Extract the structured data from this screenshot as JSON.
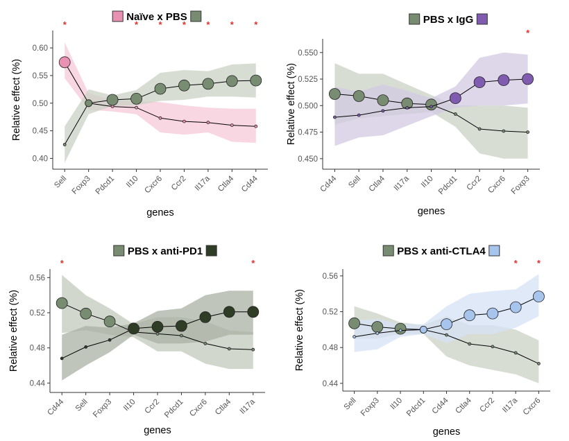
{
  "chart_data": [
    {
      "type": "line",
      "title": "Naïve x PBS",
      "xlabel": "genes",
      "ylabel": "Relative effect (%)",
      "categories": [
        "Sell",
        "Foxp3",
        "Pdcd1",
        "Il10",
        "Cxcr6",
        "Ccr2",
        "Il17a",
        "Ctla4",
        "Cd44"
      ],
      "yticks": [
        "0.40",
        "0.45",
        "0.50",
        "0.55",
        "0.60"
      ],
      "ylim": [
        0.388,
        0.624
      ],
      "significant": [
        true,
        false,
        false,
        true,
        true,
        true,
        true,
        true,
        true
      ],
      "series": [
        {
          "key": "s1",
          "color": "#e991b2",
          "band": "#f6c9d9",
          "values": [
            0.574,
            0.5,
            0.494,
            0.492,
            0.473,
            0.467,
            0.465,
            0.46,
            0.458
          ],
          "lower": [
            0.545,
            0.488,
            0.485,
            0.48,
            0.447,
            0.443,
            0.447,
            0.43,
            0.428
          ],
          "upper": [
            0.61,
            0.518,
            0.505,
            0.504,
            0.502,
            0.496,
            0.492,
            0.49,
            0.49
          ]
        },
        {
          "key": "s2",
          "color": "#788c72",
          "band": "#cbd2c6",
          "values": [
            0.425,
            0.5,
            0.506,
            0.508,
            0.526,
            0.532,
            0.535,
            0.54,
            0.541
          ],
          "lower": [
            0.392,
            0.48,
            0.495,
            0.496,
            0.504,
            0.506,
            0.512,
            0.512,
            0.51
          ],
          "upper": [
            0.458,
            0.525,
            0.514,
            0.524,
            0.555,
            0.56,
            0.558,
            0.57,
            0.572
          ]
        }
      ]
    },
    {
      "type": "line",
      "title": "PBS x IgG",
      "xlabel": "genes",
      "ylabel": "Relative effect (%)",
      "categories": [
        "Cd44",
        "Sell",
        "Ctla4",
        "Il17a",
        "Il10",
        "Pdcd1",
        "Ccr2",
        "Cxcr6",
        "Foxp3"
      ],
      "yticks": [
        "0.450",
        "0.475",
        "0.500",
        "0.525",
        "0.550"
      ],
      "ylim": [
        0.444,
        0.559
      ],
      "significant": [
        false,
        false,
        false,
        false,
        false,
        false,
        false,
        false,
        true
      ],
      "series": [
        {
          "key": "s1",
          "color": "#788c72",
          "band": "#cbd2c6",
          "values": [
            0.511,
            0.509,
            0.505,
            0.502,
            0.501,
            0.492,
            0.478,
            0.476,
            0.475
          ],
          "lower": [
            0.482,
            0.488,
            0.49,
            0.492,
            0.494,
            0.48,
            0.455,
            0.45,
            0.45
          ],
          "upper": [
            0.54,
            0.53,
            0.53,
            0.52,
            0.51,
            0.5,
            0.5,
            0.5,
            0.498
          ]
        },
        {
          "key": "s2",
          "color": "#7f5caf",
          "band": "#d3c9e3",
          "values": [
            0.489,
            0.491,
            0.495,
            0.498,
            0.499,
            0.507,
            0.522,
            0.524,
            0.525
          ],
          "lower": [
            0.462,
            0.47,
            0.472,
            0.481,
            0.49,
            0.498,
            0.5,
            0.5,
            0.502
          ],
          "upper": [
            0.518,
            0.513,
            0.52,
            0.514,
            0.507,
            0.518,
            0.545,
            0.55,
            0.548
          ]
        }
      ]
    },
    {
      "type": "line",
      "title": "PBS x anti-PD1",
      "xlabel": "genes",
      "ylabel": "Relative effect (%)",
      "categories": [
        "Cd44",
        "Sell",
        "Foxp3",
        "Il10",
        "Ccr2",
        "Pdcd1",
        "Cxcr6",
        "Ctla4",
        "Il17a"
      ],
      "yticks": [
        "0.44",
        "0.48",
        "0.52",
        "0.56"
      ],
      "ylim": [
        0.434,
        0.565
      ],
      "significant": [
        true,
        false,
        false,
        false,
        false,
        false,
        false,
        false,
        true
      ],
      "series": [
        {
          "key": "s1",
          "color": "#788c72",
          "band": "#c3c9bd",
          "values": [
            0.531,
            0.519,
            0.51,
            0.498,
            0.496,
            0.494,
            0.485,
            0.479,
            0.478
          ],
          "lower": [
            0.497,
            0.5,
            0.495,
            0.492,
            0.476,
            0.476,
            0.462,
            0.456,
            0.456
          ],
          "upper": [
            0.563,
            0.54,
            0.525,
            0.507,
            0.515,
            0.515,
            0.51,
            0.5,
            0.498
          ]
        },
        {
          "key": "s2",
          "color": "#2f3d26",
          "band": "#a9b1a3",
          "values": [
            0.468,
            0.481,
            0.489,
            0.502,
            0.504,
            0.505,
            0.515,
            0.521,
            0.521
          ],
          "lower": [
            0.443,
            0.46,
            0.475,
            0.495,
            0.485,
            0.485,
            0.487,
            0.495,
            0.495
          ],
          "upper": [
            0.495,
            0.505,
            0.503,
            0.508,
            0.522,
            0.525,
            0.54,
            0.545,
            0.545
          ]
        }
      ]
    },
    {
      "type": "line",
      "title": "PBS x anti-CTLA4",
      "xlabel": "genes",
      "ylabel": "Relative effect (%)",
      "categories": [
        "Sell",
        "Foxp3",
        "Il10",
        "Pdcd1",
        "Cd44",
        "Ctla4",
        "Ccr2",
        "Il17a",
        "Cxcr6"
      ],
      "yticks": [
        "0.44",
        "0.48",
        "0.52",
        "0.56"
      ],
      "ylim": [
        0.436,
        0.563
      ],
      "significant": [
        false,
        false,
        false,
        false,
        false,
        false,
        false,
        true,
        true
      ],
      "series": [
        {
          "key": "s1",
          "color": "#788c72",
          "band": "#cbd2c6",
          "values": [
            0.507,
            0.503,
            0.501,
            0.5,
            0.494,
            0.484,
            0.481,
            0.474,
            0.462
          ],
          "lower": [
            0.49,
            0.49,
            0.495,
            0.495,
            0.47,
            0.46,
            0.455,
            0.45,
            0.44
          ],
          "upper": [
            0.526,
            0.518,
            0.508,
            0.505,
            0.515,
            0.505,
            0.505,
            0.5,
            0.488
          ]
        },
        {
          "key": "s2",
          "color": "#a7c4ec",
          "band": "#d6e2f6",
          "values": [
            0.492,
            0.496,
            0.499,
            0.5,
            0.506,
            0.516,
            0.518,
            0.525,
            0.537
          ],
          "lower": [
            0.475,
            0.478,
            0.492,
            0.495,
            0.485,
            0.495,
            0.495,
            0.502,
            0.515
          ],
          "upper": [
            0.51,
            0.512,
            0.506,
            0.506,
            0.526,
            0.54,
            0.543,
            0.545,
            0.562
          ]
        }
      ]
    }
  ]
}
